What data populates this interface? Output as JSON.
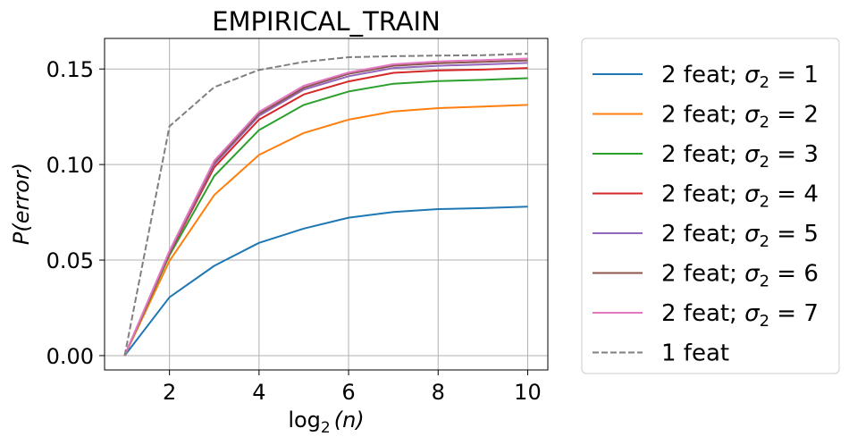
{
  "chart_data": {
    "type": "line",
    "title": "EMPIRICAL_TRAIN",
    "xlabel_base": "log",
    "xlabel_sub": "2",
    "xlabel_arg": "(n)",
    "ylabel_main": "P",
    "ylabel_arg": "(error)",
    "xlim": [
      0.55,
      10.45
    ],
    "ylim": [
      -0.0075,
      0.166
    ],
    "xticks": [
      2,
      4,
      6,
      8,
      10
    ],
    "xtick_labels": [
      "2",
      "4",
      "6",
      "8",
      "10"
    ],
    "yticks": [
      0.0,
      0.05,
      0.1,
      0.15
    ],
    "ytick_labels": [
      "0.00",
      "0.05",
      "0.10",
      "0.15"
    ],
    "grid": true,
    "legend_position": "outside-right",
    "x": [
      1,
      2,
      3,
      4,
      5,
      6,
      7,
      8,
      9,
      10
    ],
    "series": [
      {
        "name": "2 feat; σ₂ = 1",
        "legend_prefix": "2 feat; ",
        "legend_sym": "σ",
        "legend_sub": "2",
        "legend_suffix": " = 1",
        "color": "#1f77b4",
        "dashed": false,
        "values": [
          0.0,
          0.0305,
          0.047,
          0.059,
          0.0665,
          0.0722,
          0.0752,
          0.0767,
          0.0772,
          0.078
        ]
      },
      {
        "name": "2 feat; σ₂ = 2",
        "legend_prefix": "2 feat; ",
        "legend_sym": "σ",
        "legend_sub": "2",
        "legend_suffix": " = 2",
        "color": "#ff7f0e",
        "dashed": false,
        "values": [
          0.0,
          0.0495,
          0.084,
          0.105,
          0.1165,
          0.1235,
          0.1278,
          0.1295,
          0.1303,
          0.1312
        ]
      },
      {
        "name": "2 feat; σ₂ = 3",
        "legend_prefix": "2 feat; ",
        "legend_sym": "σ",
        "legend_sub": "2",
        "legend_suffix": " = 3",
        "color": "#2ca02c",
        "dashed": false,
        "values": [
          0.0,
          0.0525,
          0.094,
          0.118,
          0.1312,
          0.1382,
          0.1423,
          0.1437,
          0.1443,
          0.1452
        ]
      },
      {
        "name": "2 feat; σ₂ = 4",
        "legend_prefix": "2 feat; ",
        "legend_sym": "σ",
        "legend_sub": "2",
        "legend_suffix": " = 4",
        "color": "#d62728",
        "dashed": false,
        "values": [
          0.0,
          0.0535,
          0.0985,
          0.1235,
          0.1367,
          0.1435,
          0.148,
          0.1492,
          0.1497,
          0.1505
        ]
      },
      {
        "name": "2 feat; σ₂ = 5",
        "legend_prefix": "2 feat; ",
        "legend_sym": "σ",
        "legend_sub": "2",
        "legend_suffix": " = 5",
        "color": "#9467bd",
        "dashed": false,
        "values": [
          0.0,
          0.054,
          0.1,
          0.1255,
          0.1392,
          0.1462,
          0.1505,
          0.1517,
          0.1524,
          0.1532
        ]
      },
      {
        "name": "2 feat; σ₂ = 6",
        "legend_prefix": "2 feat; ",
        "legend_sym": "σ",
        "legend_sub": "2",
        "legend_suffix": " = 6",
        "color": "#8c564b",
        "dashed": false,
        "values": [
          0.0,
          0.0545,
          0.101,
          0.1265,
          0.1402,
          0.1475,
          0.1517,
          0.153,
          0.1537,
          0.1545
        ]
      },
      {
        "name": "2 feat; σ₂ = 7",
        "legend_prefix": "2 feat; ",
        "legend_sym": "σ",
        "legend_sub": "2",
        "legend_suffix": " = 7",
        "color": "#e377c2",
        "dashed": false,
        "values": [
          0.0,
          0.0548,
          0.102,
          0.1275,
          0.1412,
          0.1482,
          0.1525,
          0.154,
          0.1547,
          0.1555
        ]
      },
      {
        "name": "1 feat",
        "legend_prefix": "1 feat",
        "legend_sym": "",
        "legend_sub": "",
        "legend_suffix": "",
        "color": "#7f7f7f",
        "dashed": true,
        "values": [
          0.0,
          0.12,
          0.1405,
          0.1495,
          0.1537,
          0.1562,
          0.1567,
          0.157,
          0.1572,
          0.158
        ]
      }
    ]
  }
}
